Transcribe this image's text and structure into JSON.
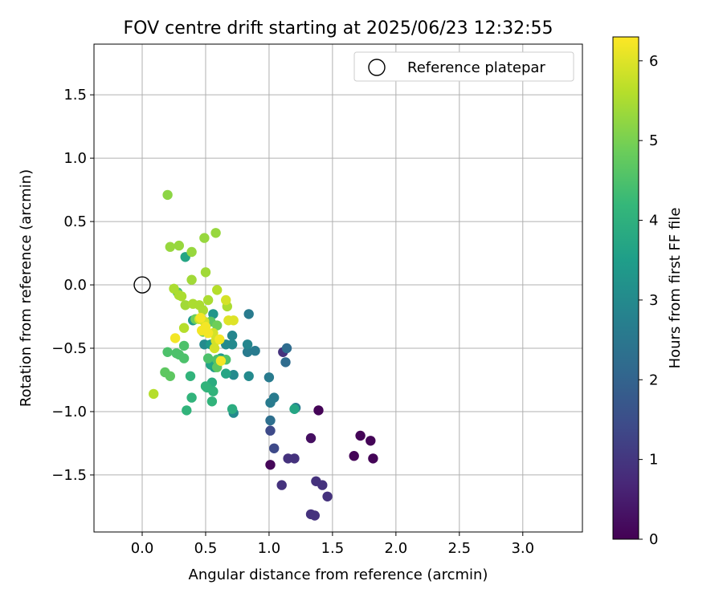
{
  "chart_data": {
    "type": "scatter",
    "title": "FOV centre drift starting at 2025/06/23 12:32:55",
    "xlabel": "Angular distance from reference (arcmin)",
    "ylabel": "Rotation from reference (arcmin)",
    "xlim": [
      -0.38,
      3.47
    ],
    "ylim": [
      -1.95,
      1.9
    ],
    "x_ticks": [
      0.0,
      0.5,
      1.0,
      1.5,
      2.0,
      2.5,
      3.0
    ],
    "x_tick_labels": [
      "0.0",
      "0.5",
      "1.0",
      "1.5",
      "2.0",
      "2.5",
      "3.0"
    ],
    "y_ticks": [
      1.5,
      1.0,
      0.5,
      0.0,
      -0.5,
      -1.0,
      -1.5
    ],
    "y_tick_labels": [
      "1.5",
      "1.0",
      "0.5",
      "0.0",
      "−0.5",
      "−1.0",
      "−1.5"
    ],
    "grid": true,
    "legend": {
      "placement": "top-right",
      "entries": [
        {
          "label": "Reference platepar",
          "marker": "open-circle"
        }
      ]
    },
    "reference_point": {
      "x": 0.0,
      "y": 0.0
    },
    "colorbar": {
      "label": "Hours from first FF file",
      "range": [
        0,
        6.3
      ],
      "ticks": [
        0,
        1,
        2,
        3,
        4,
        5,
        6
      ],
      "tick_labels": [
        "0",
        "1",
        "2",
        "3",
        "4",
        "5",
        "6"
      ],
      "colormap": "viridis",
      "stops": [
        "#440154",
        "#482878",
        "#3e4a89",
        "#31688e",
        "#26828e",
        "#1f9e89",
        "#35b779",
        "#6ece58",
        "#b5de2b",
        "#fde725"
      ]
    },
    "series": [
      {
        "points": [
          {
            "x": 1.39,
            "y": -0.99,
            "c": 0.05
          },
          {
            "x": 1.72,
            "y": -1.19,
            "c": 0.05
          },
          {
            "x": 1.8,
            "y": -1.23,
            "c": 0.05
          },
          {
            "x": 1.67,
            "y": -1.35,
            "c": 0.05
          },
          {
            "x": 1.82,
            "y": -1.37,
            "c": 0.05
          },
          {
            "x": 1.01,
            "y": -1.42,
            "c": 0.1
          },
          {
            "x": 1.33,
            "y": -1.21,
            "c": 0.25
          },
          {
            "x": 1.11,
            "y": -0.53,
            "c": 0.9
          },
          {
            "x": 1.15,
            "y": -1.37,
            "c": 0.9
          },
          {
            "x": 1.2,
            "y": -1.37,
            "c": 0.9
          },
          {
            "x": 1.1,
            "y": -1.58,
            "c": 0.9
          },
          {
            "x": 1.37,
            "y": -1.55,
            "c": 0.9
          },
          {
            "x": 1.42,
            "y": -1.58,
            "c": 0.9
          },
          {
            "x": 1.46,
            "y": -1.67,
            "c": 0.9
          },
          {
            "x": 1.33,
            "y": -1.81,
            "c": 0.9
          },
          {
            "x": 1.36,
            "y": -1.82,
            "c": 0.9
          },
          {
            "x": 1.01,
            "y": -1.15,
            "c": 1.4
          },
          {
            "x": 1.04,
            "y": -1.29,
            "c": 1.4
          },
          {
            "x": 1.14,
            "y": -0.5,
            "c": 2.2
          },
          {
            "x": 1.13,
            "y": -0.61,
            "c": 2.2
          },
          {
            "x": 1.01,
            "y": -1.07,
            "c": 2.3
          },
          {
            "x": 0.84,
            "y": -0.23,
            "c": 2.6
          },
          {
            "x": 0.89,
            "y": -0.52,
            "c": 2.6
          },
          {
            "x": 0.83,
            "y": -0.53,
            "c": 2.6
          },
          {
            "x": 1.0,
            "y": -0.73,
            "c": 2.6
          },
          {
            "x": 1.04,
            "y": -0.89,
            "c": 2.6
          },
          {
            "x": 1.01,
            "y": -0.93,
            "c": 2.6
          },
          {
            "x": 1.21,
            "y": -0.97,
            "c": 2.6
          },
          {
            "x": 0.71,
            "y": -0.4,
            "c": 2.9
          },
          {
            "x": 0.83,
            "y": -0.47,
            "c": 2.9
          },
          {
            "x": 0.71,
            "y": -0.47,
            "c": 3.0
          },
          {
            "x": 0.66,
            "y": -0.47,
            "c": 3.0
          },
          {
            "x": 0.49,
            "y": -0.47,
            "c": 3.0
          },
          {
            "x": 0.72,
            "y": -0.71,
            "c": 3.0
          },
          {
            "x": 0.84,
            "y": -0.72,
            "c": 3.0
          },
          {
            "x": 0.72,
            "y": -1.01,
            "c": 3.0
          },
          {
            "x": 0.56,
            "y": -0.23,
            "c": 3.3
          },
          {
            "x": 0.4,
            "y": -0.28,
            "c": 3.4
          },
          {
            "x": 0.54,
            "y": -0.47,
            "c": 3.4
          },
          {
            "x": 0.62,
            "y": -0.58,
            "c": 3.4
          },
          {
            "x": 0.57,
            "y": -0.65,
            "c": 3.4
          },
          {
            "x": 0.54,
            "y": -0.63,
            "c": 3.6
          },
          {
            "x": 0.34,
            "y": 0.22,
            "c": 3.7
          },
          {
            "x": 0.55,
            "y": -0.62,
            "c": 3.7
          },
          {
            "x": 0.66,
            "y": -0.7,
            "c": 3.7
          },
          {
            "x": 1.2,
            "y": -0.98,
            "c": 3.7
          },
          {
            "x": 0.55,
            "y": -0.77,
            "c": 3.9
          },
          {
            "x": 0.71,
            "y": -0.98,
            "c": 3.9
          },
          {
            "x": 0.38,
            "y": -0.72,
            "c": 4.1
          },
          {
            "x": 0.5,
            "y": -0.8,
            "c": 4.1
          },
          {
            "x": 0.51,
            "y": -0.81,
            "c": 4.1
          },
          {
            "x": 0.39,
            "y": -0.89,
            "c": 4.1
          },
          {
            "x": 0.56,
            "y": -0.84,
            "c": 4.1
          },
          {
            "x": 0.55,
            "y": -0.92,
            "c": 4.1
          },
          {
            "x": 0.35,
            "y": -0.99,
            "c": 4.1
          },
          {
            "x": 0.28,
            "y": -0.06,
            "c": 4.4
          },
          {
            "x": 0.33,
            "y": -0.48,
            "c": 4.5
          },
          {
            "x": 0.2,
            "y": -0.53,
            "c": 4.5
          },
          {
            "x": 0.27,
            "y": -0.54,
            "c": 4.5
          },
          {
            "x": 0.29,
            "y": -0.55,
            "c": 4.5
          },
          {
            "x": 0.33,
            "y": -0.58,
            "c": 4.5
          },
          {
            "x": 0.52,
            "y": -0.58,
            "c": 4.5
          },
          {
            "x": 0.59,
            "y": -0.59,
            "c": 4.5
          },
          {
            "x": 0.66,
            "y": -0.59,
            "c": 4.5
          },
          {
            "x": 0.18,
            "y": -0.69,
            "c": 4.7
          },
          {
            "x": 0.22,
            "y": -0.72,
            "c": 4.7
          },
          {
            "x": 0.59,
            "y": -0.65,
            "c": 4.7
          },
          {
            "x": 0.54,
            "y": -0.29,
            "c": 4.7
          },
          {
            "x": 0.59,
            "y": -0.32,
            "c": 4.9
          },
          {
            "x": 0.48,
            "y": -0.37,
            "c": 4.9
          },
          {
            "x": 0.42,
            "y": -0.27,
            "c": 4.9
          },
          {
            "x": 0.2,
            "y": 0.71,
            "c": 5.2
          },
          {
            "x": 0.22,
            "y": 0.3,
            "c": 5.3
          },
          {
            "x": 0.29,
            "y": 0.31,
            "c": 5.3
          },
          {
            "x": 0.39,
            "y": 0.26,
            "c": 5.3
          },
          {
            "x": 0.49,
            "y": 0.37,
            "c": 5.3
          },
          {
            "x": 0.58,
            "y": 0.41,
            "c": 5.3
          },
          {
            "x": 0.5,
            "y": 0.1,
            "c": 5.4
          },
          {
            "x": 0.39,
            "y": 0.04,
            "c": 5.4
          },
          {
            "x": 0.34,
            "y": -0.16,
            "c": 5.4
          },
          {
            "x": 0.25,
            "y": -0.03,
            "c": 5.5
          },
          {
            "x": 0.29,
            "y": -0.08,
            "c": 5.5
          },
          {
            "x": 0.31,
            "y": -0.09,
            "c": 5.5
          },
          {
            "x": 0.4,
            "y": -0.15,
            "c": 5.5
          },
          {
            "x": 0.45,
            "y": -0.16,
            "c": 5.5
          },
          {
            "x": 0.48,
            "y": -0.2,
            "c": 5.5
          },
          {
            "x": 0.52,
            "y": -0.12,
            "c": 5.5
          },
          {
            "x": 0.67,
            "y": -0.17,
            "c": 5.5
          },
          {
            "x": 0.59,
            "y": -0.04,
            "c": 5.6
          },
          {
            "x": 0.09,
            "y": -0.86,
            "c": 5.6
          },
          {
            "x": 0.33,
            "y": -0.34,
            "c": 5.6
          },
          {
            "x": 0.45,
            "y": -0.27,
            "c": 5.8
          },
          {
            "x": 0.66,
            "y": -0.12,
            "c": 5.9
          },
          {
            "x": 0.49,
            "y": -0.29,
            "c": 5.9
          },
          {
            "x": 0.56,
            "y": -0.38,
            "c": 5.9
          },
          {
            "x": 0.58,
            "y": -0.44,
            "c": 5.9
          },
          {
            "x": 0.57,
            "y": -0.5,
            "c": 5.9
          },
          {
            "x": 0.68,
            "y": -0.28,
            "c": 6.0
          },
          {
            "x": 0.72,
            "y": -0.28,
            "c": 6.0
          },
          {
            "x": 0.46,
            "y": -0.26,
            "c": 6.2
          },
          {
            "x": 0.5,
            "y": -0.33,
            "c": 6.2
          },
          {
            "x": 0.47,
            "y": -0.36,
            "c": 6.2
          },
          {
            "x": 0.52,
            "y": -0.38,
            "c": 6.2
          },
          {
            "x": 0.61,
            "y": -0.43,
            "c": 6.2
          },
          {
            "x": 0.26,
            "y": -0.42,
            "c": 6.2
          },
          {
            "x": 0.62,
            "y": -0.6,
            "c": 6.2
          }
        ]
      }
    ]
  }
}
